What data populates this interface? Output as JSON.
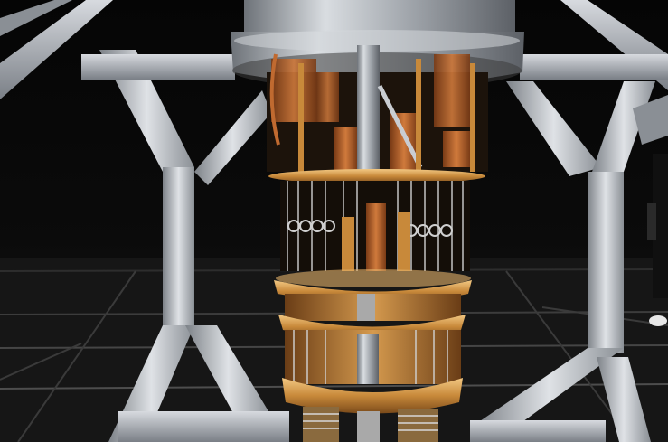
{
  "image": {
    "kind": "photograph",
    "subject": "quantum-computer-dilution-refrigerator",
    "colors": {
      "background": "#050505",
      "floor": "#1a1a1a",
      "floor_lines": "#4a4a4a",
      "frame_metal": "#b8bcc2",
      "frame_shadow": "#6f747b",
      "plate_gold": "#c8893a",
      "plate_highlight": "#f0c27a",
      "copper": "#b8652f",
      "wire_silver": "#d8d8d8",
      "canister_steel": "#a9adb3"
    }
  }
}
